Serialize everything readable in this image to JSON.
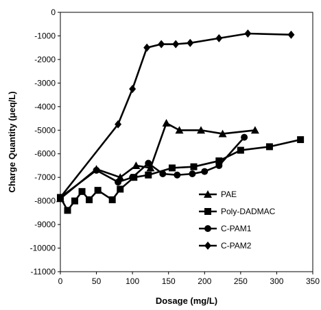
{
  "chart_data": {
    "type": "line",
    "title": "",
    "xlabel": "Dosage (mg/L)",
    "ylabel": "Charge Quantity (μeq/L)",
    "xlim": [
      0,
      350
    ],
    "ylim": [
      -11000,
      0
    ],
    "xticks": [
      "0",
      "50",
      "100",
      "150",
      "200",
      "250",
      "300",
      "350"
    ],
    "yticks": [
      "0",
      "-1000",
      "-2000",
      "-3000",
      "-4000",
      "-5000",
      "-6000",
      "-7000",
      "-8000",
      "-9000",
      "-10000",
      "-11000"
    ],
    "grid": false,
    "legend_position": "bottom-right",
    "series": [
      {
        "name": "PAE",
        "marker": "triangle",
        "x": [
          0,
          50,
          83,
          105,
          125,
          147,
          165,
          195,
          225,
          270
        ],
        "y": [
          -7900,
          -6650,
          -7000,
          -6500,
          -6600,
          -4700,
          -5000,
          -5000,
          -5150,
          -5000
        ]
      },
      {
        "name": "Poly-DADMAC",
        "marker": "square",
        "x": [
          0,
          10,
          20,
          30,
          40,
          52,
          72,
          83,
          102,
          122,
          155,
          185,
          220,
          250,
          290,
          333
        ],
        "y": [
          -7850,
          -8400,
          -8000,
          -7600,
          -7950,
          -7550,
          -7950,
          -7500,
          -7000,
          -6900,
          -6600,
          -6550,
          -6300,
          -5850,
          -5700,
          -5400
        ]
      },
      {
        "name": "C-PAM1",
        "marker": "circle",
        "x": [
          0,
          50,
          80,
          100,
          122,
          142,
          162,
          183,
          200,
          220,
          255
        ],
        "y": [
          -7850,
          -6700,
          -7200,
          -7000,
          -6400,
          -6850,
          -6900,
          -6850,
          -6750,
          -6500,
          -5300
        ]
      },
      {
        "name": "C-PAM2",
        "marker": "diamond",
        "x": [
          0,
          80,
          100,
          120,
          140,
          160,
          180,
          220,
          260,
          320
        ],
        "y": [
          -7850,
          -4750,
          -3250,
          -1500,
          -1350,
          -1350,
          -1300,
          -1100,
          -900,
          -950
        ]
      }
    ]
  }
}
